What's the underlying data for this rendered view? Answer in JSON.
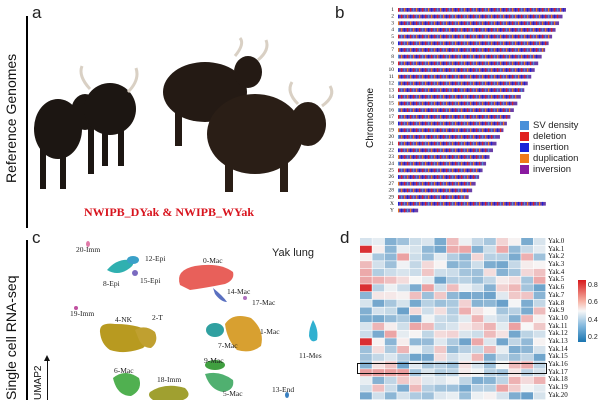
{
  "panels": {
    "a": {
      "letter": "a",
      "side_label": "Reference Genomes",
      "caption": "NWIPB_DYak  &  NWIPB_WYak"
    },
    "b": {
      "letter": "b",
      "ylabel": "Chromosome",
      "chromosomes": [
        "1",
        "2",
        "3",
        "4",
        "5",
        "6",
        "7",
        "8",
        "9",
        "10",
        "11",
        "12",
        "13",
        "14",
        "15",
        "16",
        "17",
        "18",
        "19",
        "20",
        "21",
        "22",
        "23",
        "24",
        "25",
        "26",
        "27",
        "28",
        "29",
        "X",
        "Y"
      ],
      "legend": [
        {
          "label": "SV density",
          "color": "#4a90d9"
        },
        {
          "label": "deletion",
          "color": "#e0201e"
        },
        {
          "label": "insertion",
          "color": "#1a22d8"
        },
        {
          "label": "duplication",
          "color": "#f07a1a"
        },
        {
          "label": "inversion",
          "color": "#8a1aa0"
        }
      ]
    },
    "c": {
      "letter": "c",
      "side_label": "Single cell RNA-seq",
      "axis_label": "UMAP2",
      "title": "Yak lung",
      "clusters": [
        {
          "label": "20-Imm",
          "color": "#e07aa8"
        },
        {
          "label": "12-Epi",
          "color": "#3aa0c8"
        },
        {
          "label": "8-Epi",
          "color": "#30b0b0"
        },
        {
          "label": "15-Epi",
          "color": "#7a6ac0"
        },
        {
          "label": "0-Mac",
          "color": "#e8605a"
        },
        {
          "label": "14-Mac",
          "color": "#5a70c0"
        },
        {
          "label": "17-Mac",
          "color": "#b070c0"
        },
        {
          "label": "19-Imm",
          "color": "#c050a0"
        },
        {
          "label": "4-NK",
          "color": "#b89a20"
        },
        {
          "label": "2-T",
          "color": "#c0a030"
        },
        {
          "label": "1-Mac",
          "color": "#d8a030"
        },
        {
          "label": "7-Mac",
          "color": "#30a0a0"
        },
        {
          "label": "11-Mes",
          "color": "#30b0d0"
        },
        {
          "label": "9-Mac",
          "color": "#40a040"
        },
        {
          "label": "6-Mac",
          "color": "#50b050"
        },
        {
          "label": "18-Imm",
          "color": "#a0a030"
        },
        {
          "label": "5-Mac",
          "color": "#50b070"
        },
        {
          "label": "13-End",
          "color": "#3a80c0"
        }
      ]
    },
    "d": {
      "letter": "d",
      "rows": [
        "Yak.0",
        "Yak.1",
        "Yak.2",
        "Yak.3",
        "Yak.4",
        "Yak.5",
        "Yak.6",
        "Yak.7",
        "Yak.8",
        "Yak.9",
        "Yak.10",
        "Yak.11",
        "Yak.12",
        "Yak.13",
        "Yak.14",
        "Yak.15",
        "Yak.16",
        "Yak.17",
        "Yak.18",
        "Yak.19",
        "Yak.20"
      ],
      "highlighted_row": "Yak.16",
      "colorbar_ticks": [
        "0.8",
        "0.6",
        "0.4",
        "0.2"
      ],
      "colors": {
        "high": "#d7191c",
        "mid": "#f7f7f7",
        "low": "#2c7bb6"
      }
    }
  }
}
